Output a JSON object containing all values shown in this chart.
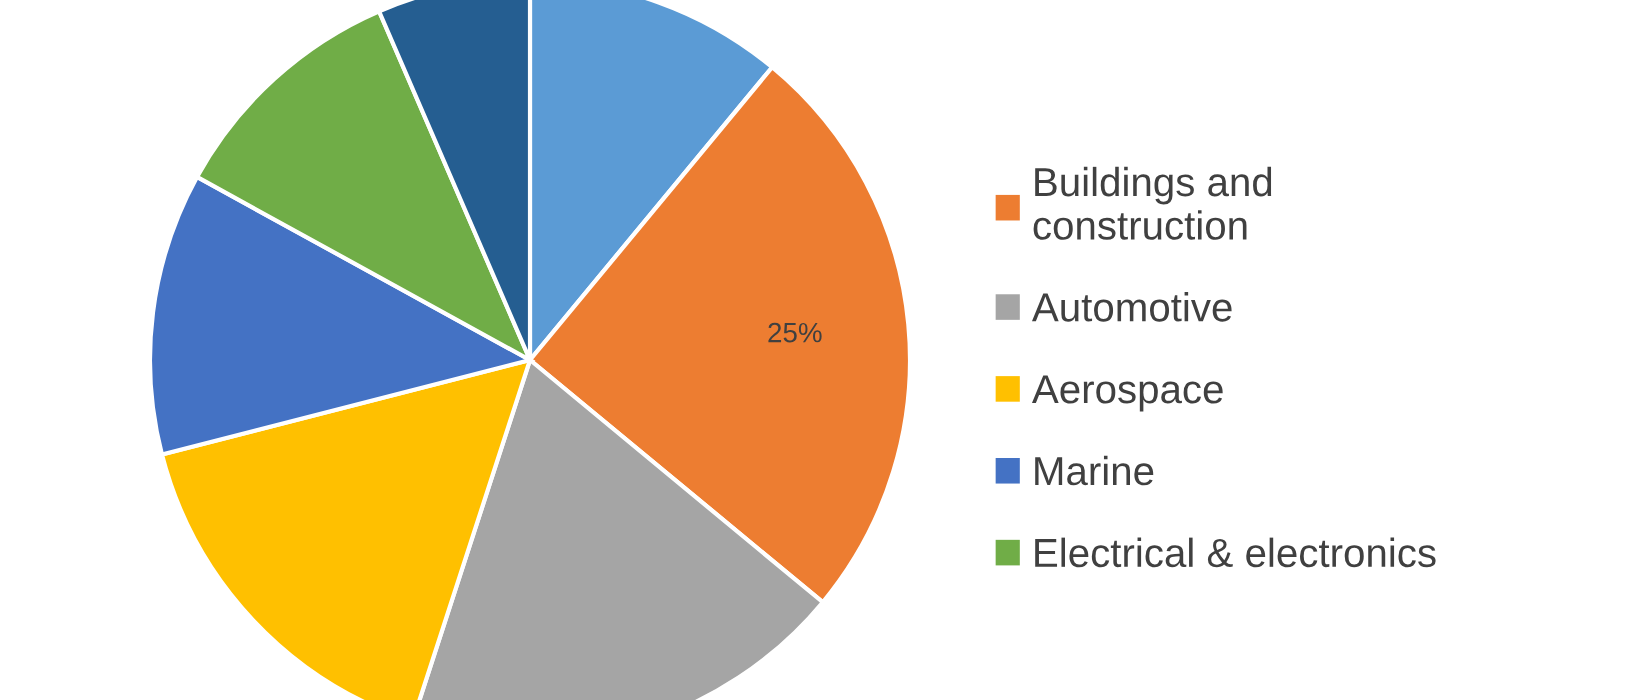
{
  "chart_data": {
    "type": "pie",
    "categories": [
      null,
      "Buildings and\nconstruction",
      "Automotive",
      "Aerospace",
      "Marine",
      "Electrical & electronics",
      null
    ],
    "values": [
      11,
      25,
      19,
      16,
      12,
      10.5,
      6.5
    ],
    "colors": [
      "#5b9bd5",
      "#ed7d31",
      "#a5a5a5",
      "#ffc000",
      "#4472c4",
      "#70ad47",
      "#255e91"
    ],
    "value_labels": [
      null,
      "25%",
      null,
      null,
      null,
      null,
      null
    ],
    "legend": "right"
  }
}
